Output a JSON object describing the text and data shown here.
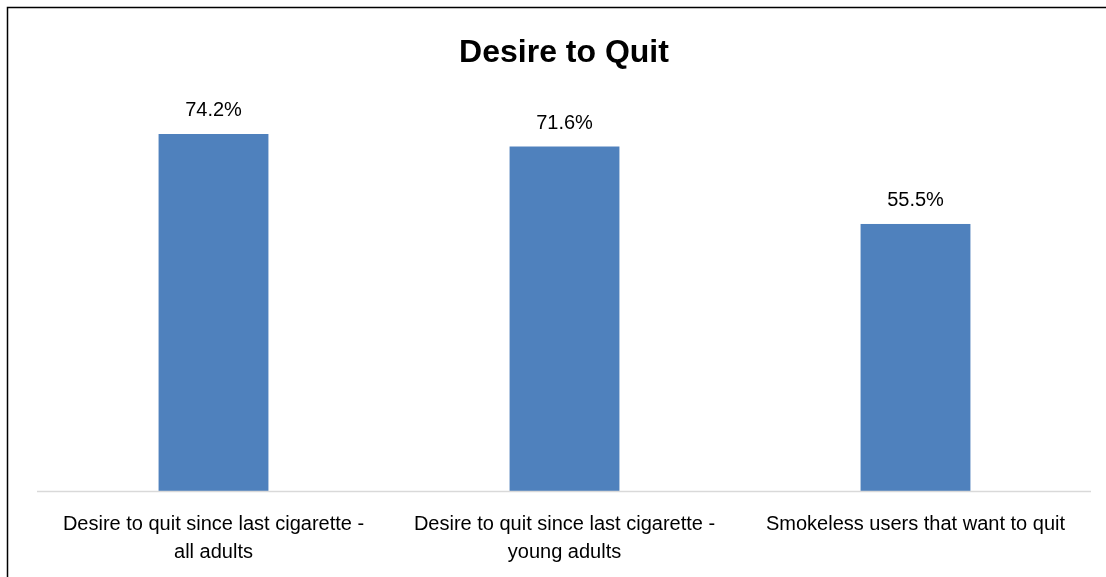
{
  "chart_data": {
    "type": "bar",
    "title": "Desire to Quit",
    "categories": [
      "Desire to quit since last cigarette - all adults",
      "Desire to quit since last cigarette - young adults",
      "Smokeless users that want to quit"
    ],
    "values": [
      74.2,
      71.6,
      55.5
    ],
    "color": "#4f81bd",
    "value_labels": [
      "74.2%",
      "71.6%",
      "55.5%"
    ]
  }
}
